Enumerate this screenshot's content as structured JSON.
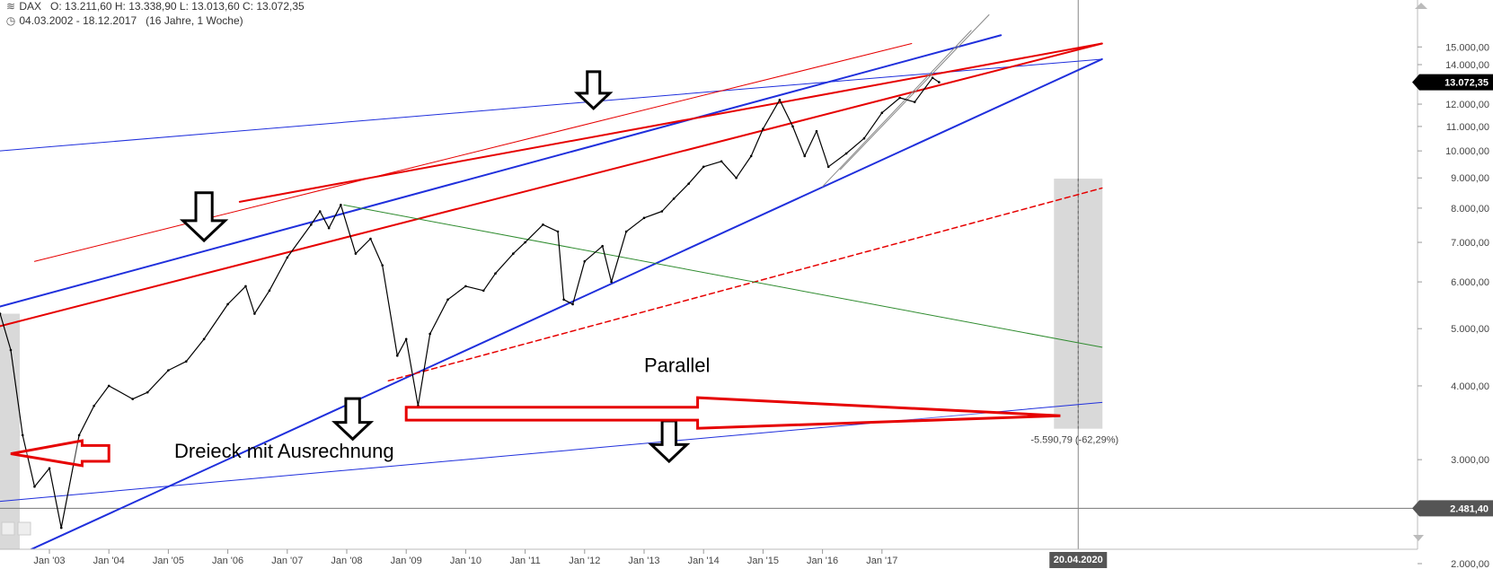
{
  "header": {
    "symbol": "DAX",
    "ohlc": "O: 13.211,60  H: 13.338,90  L: 13.013,60  C: 13.072,35",
    "range": "04.03.2002 - 18.12.2017",
    "period": "(16 Jahre, 1 Woche)",
    "icon_chart": "chart-icon",
    "icon_clock": "clock-icon"
  },
  "chart_data": {
    "type": "line",
    "scale": "log",
    "ylim": [
      2000,
      15000
    ],
    "xlim": [
      "2002-03",
      "2020-07"
    ],
    "grid": false,
    "title": "",
    "xlabel": "",
    "ylabel": "",
    "y_ticks": [
      "2.000,00",
      "3.000,00",
      "4.000,00",
      "5.000,00",
      "6.000,00",
      "7.000,00",
      "8.000,00",
      "9.000,00",
      "10.000,00",
      "11.000,00",
      "12.000,00",
      "13.000,00",
      "14.000,00",
      "15.000,00"
    ],
    "y_tick_values": [
      2000,
      3000,
      4000,
      5000,
      6000,
      7000,
      8000,
      9000,
      10000,
      11000,
      12000,
      13000,
      14000,
      15000
    ],
    "x_ticks": [
      "Jan '03",
      "Jan '04",
      "Jan '05",
      "Jan '06",
      "Jan '07",
      "Jan '08",
      "Jan '09",
      "Jan '10",
      "Jan '11",
      "Jan '12",
      "Jan '13",
      "Jan '14",
      "Jan '15",
      "Jan '16",
      "Jan '17"
    ],
    "x_tick_values": [
      2003.0,
      2004.0,
      2005.0,
      2006.0,
      2007.0,
      2008.0,
      2009.0,
      2010.0,
      2011.0,
      2012.0,
      2013.0,
      2014.0,
      2015.0,
      2016.0,
      2017.0
    ],
    "series": [
      {
        "x": [
          2002.17,
          2002.35,
          2002.55,
          2002.75,
          2003.0,
          2003.2,
          2003.5,
          2003.75,
          2004.0,
          2004.4,
          2004.65,
          2005.0,
          2005.3,
          2005.6,
          2006.0,
          2006.3,
          2006.45,
          2006.7,
          2007.0,
          2007.4,
          2007.55,
          2007.7,
          2007.9,
          2008.15,
          2008.4,
          2008.6,
          2008.85,
          2009.0,
          2009.2,
          2009.4,
          2009.7,
          2010.0,
          2010.3,
          2010.5,
          2010.8,
          2011.0,
          2011.3,
          2011.55,
          2011.65,
          2011.8,
          2012.0,
          2012.3,
          2012.45,
          2012.7,
          2013.0,
          2013.3,
          2013.5,
          2013.75,
          2014.0,
          2014.3,
          2014.55,
          2014.8,
          2015.0,
          2015.28,
          2015.5,
          2015.7,
          2015.9,
          2016.1,
          2016.4,
          2016.7,
          2017.0,
          2017.3,
          2017.55,
          2017.85,
          2017.96
        ],
        "values": [
          5300,
          4600,
          3300,
          2700,
          2900,
          2300,
          3300,
          3700,
          4000,
          3800,
          3900,
          4250,
          4400,
          4800,
          5500,
          5900,
          5300,
          5800,
          6600,
          7500,
          7900,
          7400,
          8100,
          6700,
          7100,
          6400,
          4500,
          4800,
          3700,
          4900,
          5600,
          5900,
          5800,
          6200,
          6700,
          7000,
          7500,
          7300,
          5600,
          5500,
          6500,
          6900,
          6000,
          7300,
          7700,
          7900,
          8300,
          8800,
          9400,
          9600,
          9000,
          9800,
          10900,
          12200,
          11000,
          9800,
          10800,
          9400,
          9900,
          10500,
          11600,
          12300,
          12100,
          13300,
          13072
        ]
      }
    ],
    "price_tag": "13.072,35",
    "price_tag_value": 13072.35,
    "price_tag_bg": "#000000",
    "level_tag": "2.481,40",
    "level_tag_value": 2481.4,
    "level_tag_bg": "#555555",
    "date_tag": "20.04.2020",
    "date_tag_value": 2020.3,
    "measure_label": "-5.590,79 (-62,29%)",
    "measure_from": 8975,
    "measure_to": 3385,
    "annotations": [
      {
        "text": "Parallel",
        "x": 2013.0,
        "y": 4220
      },
      {
        "text": "Dreieck mit Ausrechnung",
        "x": 2005.1,
        "y": 3020
      }
    ],
    "colors": {
      "blue": "#1f2fdc",
      "red": "#e60000",
      "green": "#2e8b2e",
      "price": "#000000",
      "box": "#d9d9d9"
    }
  }
}
